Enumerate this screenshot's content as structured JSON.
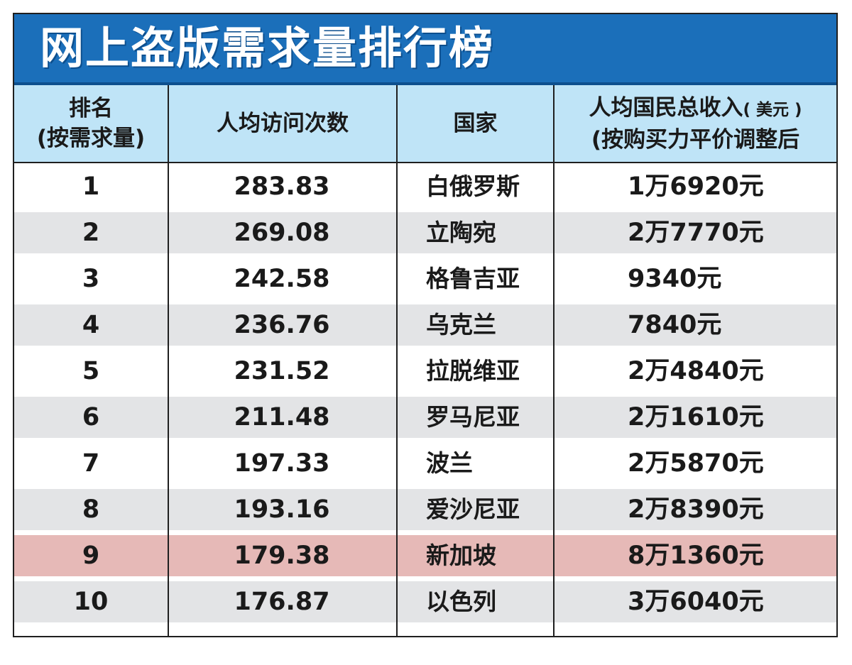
{
  "title": "网上盗版需求量排行榜",
  "headers": {
    "rank_line1": "排名",
    "rank_line2": "(按需求量)",
    "visits": "人均访问次数",
    "country": "国家",
    "income_line1_main": "人均国民总收入",
    "income_line1_unit": "( 美元 )",
    "income_line2": "(按购买力平价调整后"
  },
  "colors": {
    "title_background": "#1b6fba",
    "header_background": "#bfe4f7",
    "alternate_row": "#e3e4e6",
    "highlight_row": "#e6b9b7"
  },
  "highlighted_rank": 9,
  "chart_data": {
    "type": "table",
    "title": "网上盗版需求量排行榜",
    "columns": [
      "排名(按需求量)",
      "人均访问次数",
      "国家",
      "人均国民总收入( 美元 )(按购买力平价调整后"
    ],
    "rows": [
      {
        "rank": "1",
        "visits": "283.83",
        "country": "白俄罗斯",
        "income": "1万6920元"
      },
      {
        "rank": "2",
        "visits": "269.08",
        "country": "立陶宛",
        "income": "2万7770元"
      },
      {
        "rank": "3",
        "visits": "242.58",
        "country": "格鲁吉亚",
        "income": "9340元"
      },
      {
        "rank": "4",
        "visits": "236.76",
        "country": "乌克兰",
        "income": "7840元"
      },
      {
        "rank": "5",
        "visits": "231.52",
        "country": "拉脱维亚",
        "income": "2万4840元"
      },
      {
        "rank": "6",
        "visits": "211.48",
        "country": "罗马尼亚",
        "income": "2万1610元"
      },
      {
        "rank": "7",
        "visits": "197.33",
        "country": "波兰",
        "income": "2万5870元"
      },
      {
        "rank": "8",
        "visits": "193.16",
        "country": "爱沙尼亚",
        "income": "2万8390元"
      },
      {
        "rank": "9",
        "visits": "179.38",
        "country": "新加坡",
        "income": "8万1360元"
      },
      {
        "rank": "10",
        "visits": "176.87",
        "country": "以色列",
        "income": "3万6040元"
      }
    ]
  }
}
